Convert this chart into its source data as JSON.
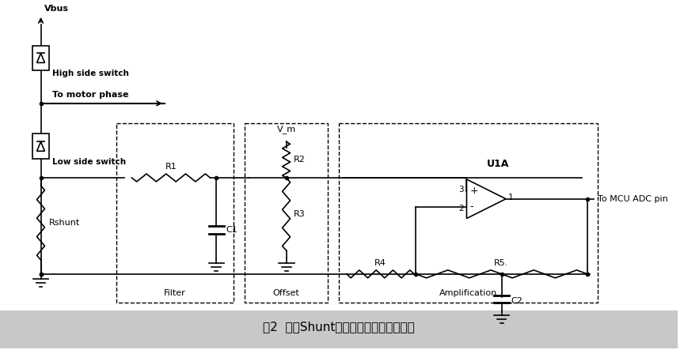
{
  "title": "图2  常用Shunt电阻电流检测电路原理图",
  "bg_color": "#ffffff",
  "footer_color": "#cccccc",
  "labels": {
    "vbus": "Vbus",
    "high_side": "High side switch",
    "to_motor": "To motor phase",
    "low_side": "Low side switch",
    "rshunt": "Rshunt",
    "r1": "R1",
    "c1": "C1",
    "r2": "R2",
    "r3": "R3",
    "r4": "R4",
    "r5": "R5.",
    "c2": "C2",
    "u1a": "U1A",
    "v_m": "V_m",
    "filter": "Filter",
    "offset": "Offset",
    "amplification": "Amplification",
    "mcu": "To MCU ADC pin",
    "pin1": "1",
    "pin2": "2",
    "pin3": "3"
  }
}
